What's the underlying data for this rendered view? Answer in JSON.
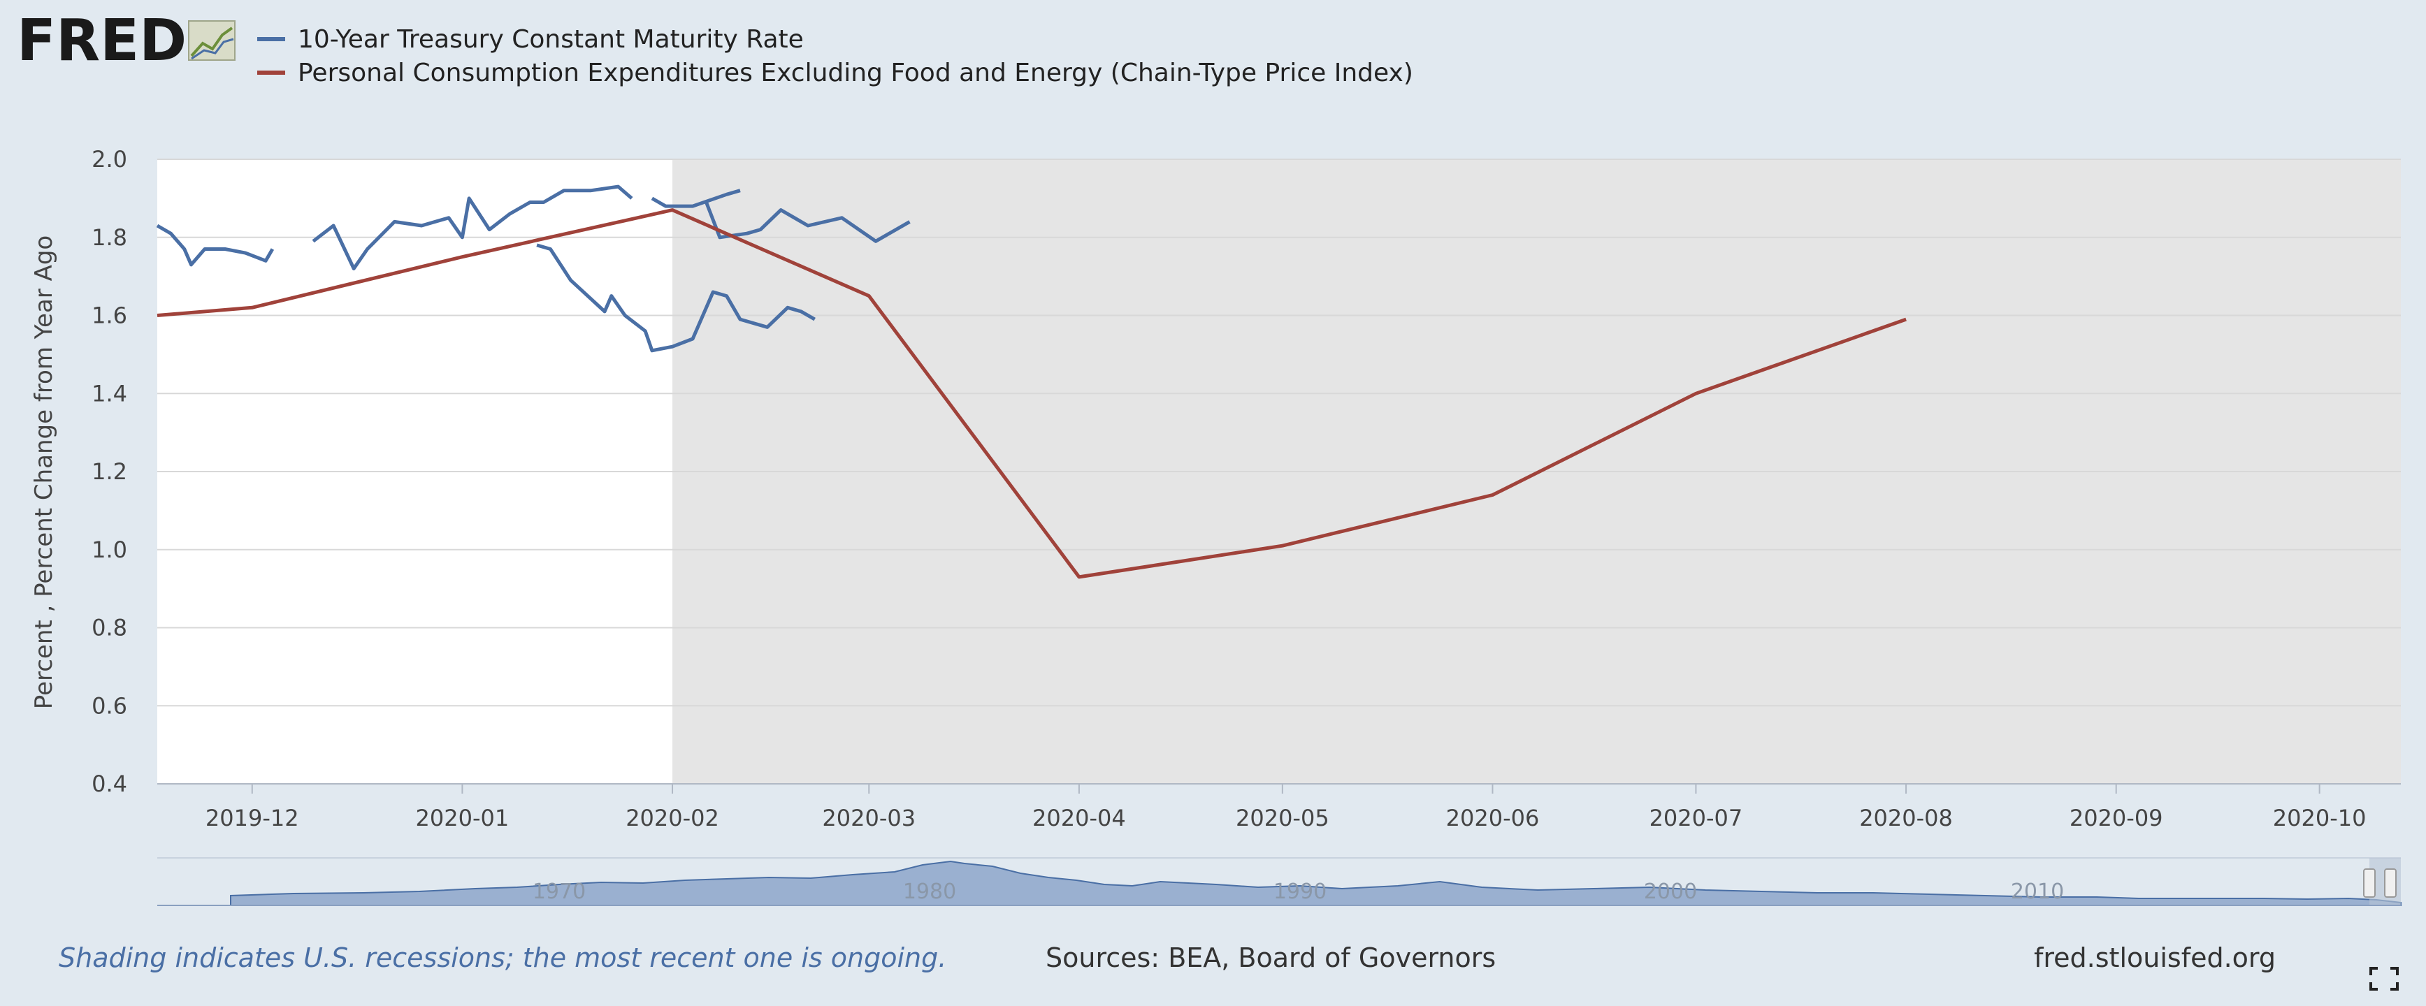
{
  "logo": {
    "text": "FRED",
    "icon": "chart-line-icon"
  },
  "chart_data": {
    "type": "line",
    "ylabel": "Percent , Percent Change from Year Ago",
    "xlabel": "",
    "ylim": [
      0.4,
      2.0
    ],
    "y_ticks": [
      "2.0",
      "1.8",
      "1.6",
      "1.4",
      "1.2",
      "1.0",
      "0.8",
      "0.6",
      "0.4"
    ],
    "x_range": [
      "2019-11-17",
      "2020-10-13"
    ],
    "x_ticks": [
      "2019-12",
      "2020-01",
      "2020-02",
      "2020-03",
      "2020-04",
      "2020-05",
      "2020-06",
      "2020-07",
      "2020-08",
      "2020-09",
      "2020-10"
    ],
    "recession_shading": {
      "start": "2020-02-01",
      "end": "2020-10-13"
    },
    "grid": true,
    "legend_position": "top-left",
    "series": [
      {
        "name": "10-Year Treasury Constant Maturity Rate",
        "color": "#4a6fa5",
        "segments": [
          [
            [
              "2019-11-17",
              1.83
            ],
            [
              "2019-11-19",
              1.81
            ],
            [
              "2019-11-21",
              1.77
            ],
            [
              "2019-11-22",
              1.73
            ],
            [
              "2019-11-24",
              1.77
            ],
            [
              "2019-11-27",
              1.77
            ],
            [
              "2019-11-30",
              1.76
            ],
            [
              "2019-12-03",
              1.74
            ],
            [
              "2019-12-04",
              1.77
            ]
          ],
          [
            [
              "2019-12-10",
              1.79
            ],
            [
              "2019-12-13",
              1.83
            ],
            [
              "2019-12-16",
              1.72
            ],
            [
              "2019-12-18",
              1.77
            ],
            [
              "2019-12-22",
              1.84
            ],
            [
              "2019-12-26",
              1.83
            ],
            [
              "2019-12-30",
              1.85
            ],
            [
              "2020-01-01",
              1.8
            ],
            [
              "2020-01-02",
              1.9
            ],
            [
              "2020-01-05",
              1.82
            ],
            [
              "2020-01-08",
              1.86
            ],
            [
              "2020-01-11",
              1.89
            ],
            [
              "2020-01-13",
              1.89
            ],
            [
              "2020-01-16",
              1.92
            ],
            [
              "2020-01-20",
              1.92
            ],
            [
              "2020-01-24",
              1.93
            ],
            [
              "2020-01-26",
              1.9
            ]
          ],
          [
            [
              "2020-01-29",
              1.9
            ],
            [
              "2020-01-31",
              1.88
            ],
            [
              "2020-02-04",
              1.88
            ],
            [
              "2020-02-09",
              1.91
            ],
            [
              "2020-02-11",
              1.92
            ]
          ],
          [
            [
              "2020-02-06",
              1.89
            ],
            [
              "2020-02-08",
              1.8
            ],
            [
              "2020-02-12",
              1.81
            ],
            [
              "2020-02-14",
              1.82
            ],
            [
              "2020-02-17",
              1.87
            ],
            [
              "2020-02-21",
              1.83
            ],
            [
              "2020-02-26",
              1.85
            ],
            [
              "2020-03-02",
              1.79
            ],
            [
              "2020-03-07",
              1.84
            ]
          ],
          [
            [
              "2020-01-12",
              1.78
            ],
            [
              "2020-01-14",
              1.77
            ],
            [
              "2020-01-17",
              1.69
            ],
            [
              "2020-01-22",
              1.61
            ],
            [
              "2020-01-23",
              1.65
            ],
            [
              "2020-01-25",
              1.6
            ],
            [
              "2020-01-28",
              1.56
            ],
            [
              "2020-01-29",
              1.51
            ],
            [
              "2020-02-01",
              1.52
            ],
            [
              "2020-02-04",
              1.54
            ],
            [
              "2020-02-07",
              1.66
            ],
            [
              "2020-02-09",
              1.65
            ],
            [
              "2020-02-11",
              1.59
            ],
            [
              "2020-02-15",
              1.57
            ],
            [
              "2020-02-18",
              1.62
            ],
            [
              "2020-02-20",
              1.61
            ],
            [
              "2020-02-22",
              1.59
            ]
          ]
        ]
      },
      {
        "name": "Personal Consumption Expenditures Excluding Food and Energy (Chain-Type Price Index)",
        "color": "#a0423a",
        "points": [
          [
            "2019-11-17",
            1.6
          ],
          [
            "2019-12-01",
            1.62
          ],
          [
            "2020-01-01",
            1.75
          ],
          [
            "2020-02-01",
            1.87
          ],
          [
            "2020-03-01",
            1.65
          ],
          [
            "2020-04-01",
            0.93
          ],
          [
            "2020-05-01",
            1.01
          ],
          [
            "2020-06-01",
            1.14
          ],
          [
            "2020-07-01",
            1.4
          ],
          [
            "2020-08-01",
            1.59
          ]
        ]
      }
    ]
  },
  "navigator": {
    "labels": [
      "1970",
      "1980",
      "1990",
      "2000",
      "2010"
    ]
  },
  "footer": {
    "note": "Shading indicates U.S. recessions; the most recent one is ongoing.",
    "sources": "Sources: BEA, Board of Governors",
    "site": "fred.stlouisfed.org",
    "fullscreen_icon": "fullscreen-icon"
  }
}
